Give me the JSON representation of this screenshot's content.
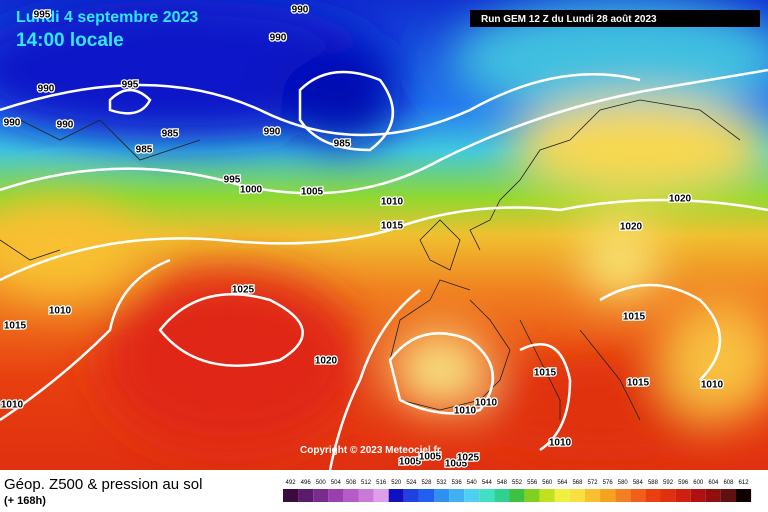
{
  "header": {
    "date": "Lundi 4 septembre 2023",
    "time": "14:00 locale",
    "run": "Run GEM 12 Z du Lundi 28 août 2023"
  },
  "isobar_labels": [
    995,
    990,
    990,
    990,
    995,
    990,
    990,
    985,
    985,
    990,
    985,
    995,
    1000,
    1005,
    1010,
    1015,
    1020,
    1020,
    1025,
    1010,
    1015,
    1015,
    1020,
    1015,
    1015,
    1010,
    1010,
    1010,
    1010,
    1010,
    1005,
    1005,
    1005,
    1025
  ],
  "copyright": "Copyright © 2023 Meteociel.fr",
  "legend": {
    "title": "Géop. Z500 & pression au sol",
    "subtitle": "(+ 168h)",
    "scale": [
      492,
      496,
      500,
      504,
      508,
      512,
      516,
      520,
      524,
      528,
      532,
      536,
      540,
      544,
      548,
      552,
      556,
      560,
      564,
      568,
      572,
      576,
      580,
      584,
      588,
      592,
      596,
      600,
      604,
      608,
      612
    ],
    "colors": [
      "#3b0a3f",
      "#5b1a6a",
      "#7a2c8c",
      "#9a3fae",
      "#b45bc6",
      "#c97ad8",
      "#e09ee8",
      "#1010c0",
      "#2040e0",
      "#2060f0",
      "#3090f0",
      "#40b0f0",
      "#50d0f0",
      "#40e0c0",
      "#30d090",
      "#40c040",
      "#80d020",
      "#c0e020",
      "#f0f040",
      "#f8e040",
      "#f8c030",
      "#f8a020",
      "#f08020",
      "#f06018",
      "#e84010",
      "#e03010",
      "#d02010",
      "#b01010",
      "#901010",
      "#601010",
      "#100000"
    ]
  }
}
